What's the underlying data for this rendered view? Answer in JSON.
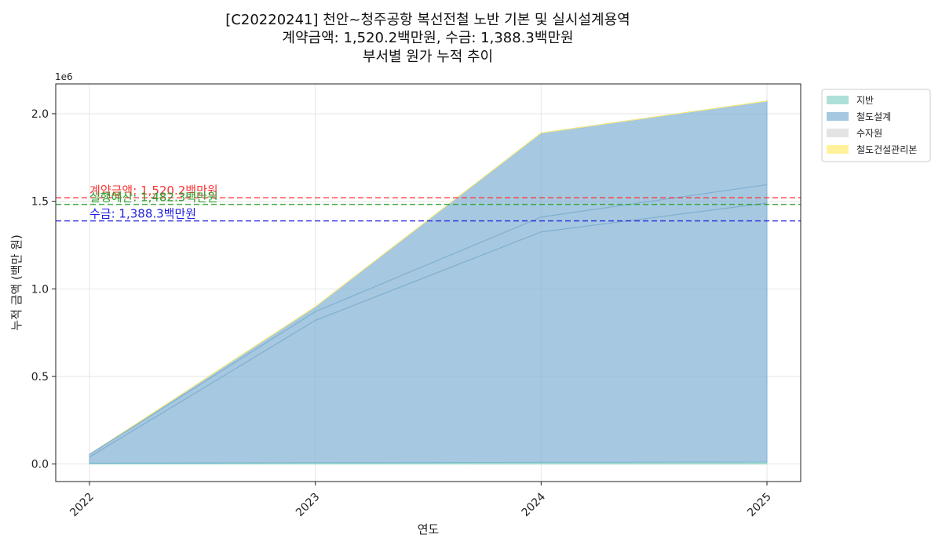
{
  "chart_data": {
    "type": "area",
    "title_lines": [
      "[C20220241] 천안~청주공항 복선전철 노반 기본 및 실시설계용역",
      "계약금액: 1,520.2백만원, 수금: 1,388.3백만원",
      "부서별 원가 누적 추이"
    ],
    "xlabel": "연도",
    "ylabel": "누적 금액 (백만 원)",
    "y_exponent_label": "1e6",
    "x": [
      "2022",
      "2023",
      "2024",
      "2025"
    ],
    "ylim": [
      -100000,
      2170000
    ],
    "yticks": [
      0,
      500000,
      1000000,
      1500000,
      2000000
    ],
    "ytick_labels": [
      "0.0",
      "0.5",
      "1.0",
      "1.5",
      "2.0"
    ],
    "grid": true,
    "legend_position": "upper-right-outside",
    "series": [
      {
        "name": "지반",
        "color": "#8dd3c7",
        "values": [
          5000,
          8000,
          10000,
          12000
        ]
      },
      {
        "name": "철도설계",
        "color": "#80b1d3",
        "values": [
          50000,
          890000,
          1880000,
          2060000
        ]
      },
      {
        "name": "수자원",
        "color": "#d9d9d9",
        "values": [
          0,
          0,
          0,
          0
        ]
      },
      {
        "name": "철도건설관리본",
        "color": "#ffed6f",
        "values": [
          0,
          0,
          0,
          0
        ]
      }
    ],
    "inner_lines": [
      {
        "color": "#7fb0d0",
        "values": [
          55000,
          870000,
          1410000,
          1595000
        ]
      },
      {
        "color": "#7fb0d0",
        "values": [
          40000,
          820000,
          1325000,
          1490000
        ]
      }
    ],
    "reference_lines": [
      {
        "label": "계약금액: 1,520.2백만원",
        "value": 1520200,
        "color": "#ff3333"
      },
      {
        "label": "실행예산: 1,482.3백만원",
        "value": 1482300,
        "color": "#2ca02c"
      },
      {
        "label": "수금: 1,388.3백만원",
        "value": 1388300,
        "color": "#1f1fdd"
      }
    ]
  }
}
